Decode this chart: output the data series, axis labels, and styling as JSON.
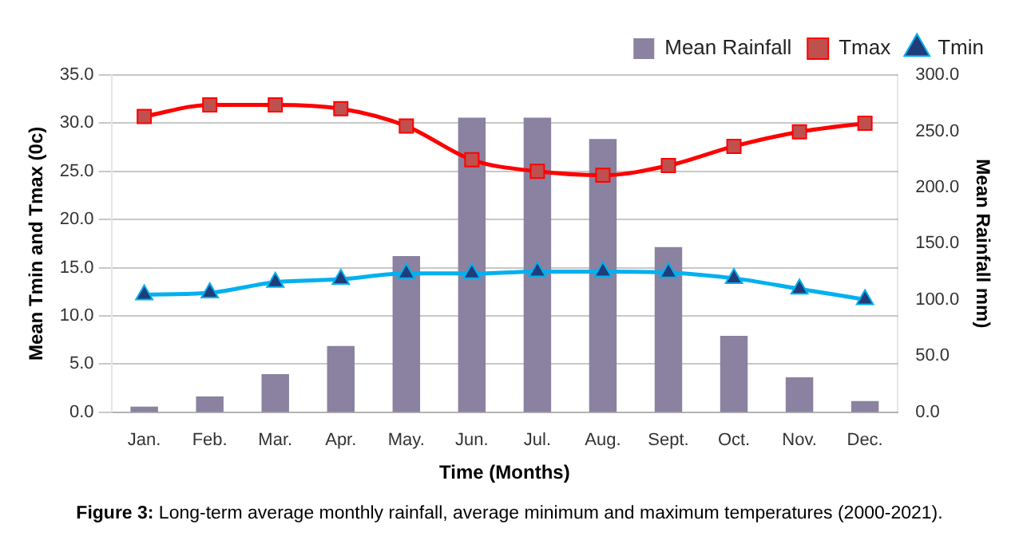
{
  "chart_data": {
    "type": "bar",
    "xlabel": "Time (Months)",
    "ylabel": "Mean Tmin and Tmax (0c)",
    "y2label": "Mean Rainfall mm)",
    "categories": [
      "Jan.",
      "Feb.",
      "Mar.",
      "Apr.",
      "May.",
      "Jun.",
      "Jul.",
      "Aug.",
      "Sept.",
      "Oct.",
      "Nov.",
      "Dec."
    ],
    "series": [
      {
        "name": "Mean Rainfall",
        "axis": "y2",
        "color": "#8a82a0",
        "values": [
          5,
          14,
          34,
          59,
          139,
          262,
          262,
          243,
          147,
          68,
          31,
          10
        ]
      },
      {
        "name": "Tmax",
        "type": "line",
        "color": "#ff0000",
        "marker": "square",
        "values": [
          30.7,
          31.9,
          31.9,
          31.5,
          29.7,
          26.2,
          25.0,
          24.6,
          25.6,
          27.6,
          29.1,
          30.0
        ]
      },
      {
        "name": "Tmin",
        "type": "line",
        "color": "#00b0f0",
        "marker": "triangle",
        "values": [
          12.2,
          12.4,
          13.5,
          13.8,
          14.4,
          14.4,
          14.6,
          14.6,
          14.5,
          13.9,
          12.8,
          11.7
        ]
      }
    ],
    "ylim": [
      0,
      35
    ],
    "yticks": [
      {
        "value": 0,
        "label": "0.0"
      },
      {
        "value": 5,
        "label": "5.0"
      },
      {
        "value": 10,
        "label": "10.0"
      },
      {
        "value": 15,
        "label": "15.0"
      },
      {
        "value": 20,
        "label": "20.0"
      },
      {
        "value": 25,
        "label": "25.0"
      },
      {
        "value": 30,
        "label": "30.0"
      },
      {
        "value": 35,
        "label": "35.0"
      }
    ],
    "y2lim": [
      0,
      300
    ],
    "y2ticks": [
      {
        "value": 0,
        "label": "0.0"
      },
      {
        "value": 50,
        "label": "50.0"
      },
      {
        "value": 100,
        "label": "100.0"
      },
      {
        "value": 150,
        "label": "150.0"
      },
      {
        "value": 200,
        "label": "200.0"
      },
      {
        "value": 250,
        "label": "250.0"
      },
      {
        "value": 300,
        "label": "300.0"
      }
    ],
    "grid": "y",
    "legend": "top right",
    "annotations": [
      "Figure 3: Long-term average monthly rainfall, average minimum and maximum temperatures (2000-2021)."
    ]
  }
}
